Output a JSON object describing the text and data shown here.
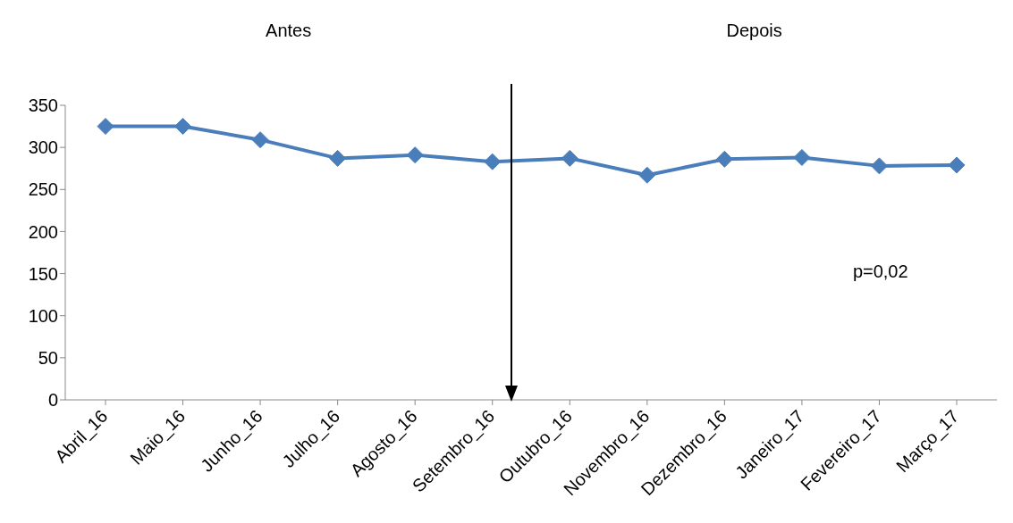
{
  "chart_data": {
    "type": "line",
    "annotations": [
      "Antes",
      "Depois",
      "p=0,02"
    ],
    "categories": [
      "Abril_16",
      "Maio_16",
      "Junho_16",
      "Julho_16",
      "Agosto_16",
      "Setembro_16",
      "Outubro_16",
      "Novembro_16",
      "Dezembro_16",
      "Janeiro_17",
      "Fevereiro_17",
      "Março_17"
    ],
    "series": [
      {
        "color": "#4a7ebb",
        "values": [
          325,
          325,
          309,
          287,
          291,
          283,
          287,
          267,
          286,
          288,
          278,
          279
        ]
      }
    ],
    "ylim": [
      0,
      350
    ],
    "yticks": [
      0,
      50,
      100,
      150,
      200,
      250,
      300,
      350
    ],
    "grid": false,
    "legend": false,
    "marker": "diamond",
    "line_style": "solid"
  }
}
